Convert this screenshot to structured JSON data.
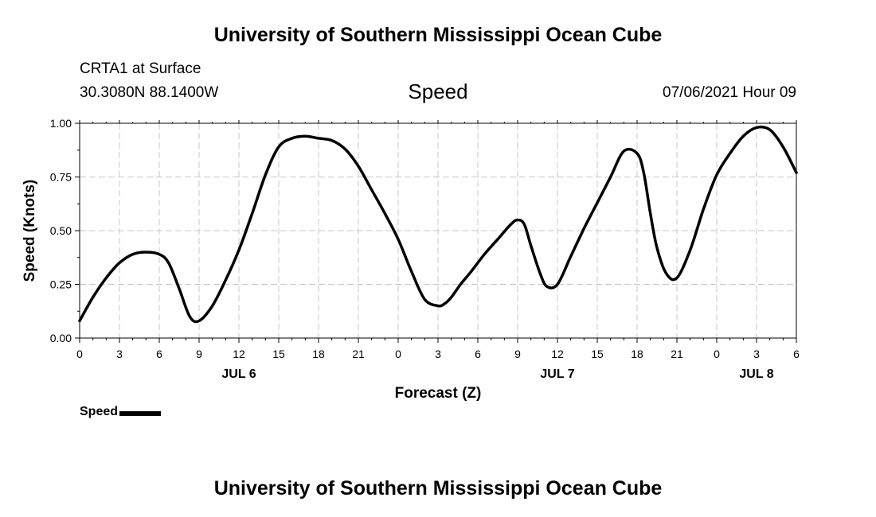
{
  "header": {
    "title": "University of Southern Mississippi Ocean Cube",
    "station": "CRTA1 at Surface",
    "coords": "30.3080N  88.1400W",
    "run_time": "07/06/2021 Hour 09"
  },
  "footer": {
    "title": "University of Southern Mississippi Ocean Cube"
  },
  "legend": {
    "label": "Speed"
  },
  "chart_data": {
    "type": "line",
    "title": "Speed",
    "xlabel": "Forecast (Z)",
    "ylabel": "Speed (Knots)",
    "x_unit": "forecast hour",
    "xlim": [
      0,
      54
    ],
    "ylim": [
      0,
      1
    ],
    "y_ticks": [
      "0.00",
      "0.25",
      "0.50",
      "0.75",
      "1.00"
    ],
    "x_tick_labels": [
      "0",
      "3",
      "6",
      "9",
      "12",
      "15",
      "18",
      "21",
      "0",
      "3",
      "6",
      "9",
      "12",
      "15",
      "18",
      "21",
      "0",
      "3",
      "6"
    ],
    "date_labels": [
      {
        "label": "JUL 6",
        "hour": 12
      },
      {
        "label": "JUL 7",
        "hour": 36
      },
      {
        "label": "JUL 8",
        "hour": 51
      }
    ],
    "grid": true,
    "legend_position": "bottom-left",
    "series": [
      {
        "name": "Speed",
        "color": "#000000",
        "x": [
          0,
          1,
          2,
          3,
          4,
          5,
          6,
          6.7,
          7.5,
          8.3,
          9,
          10,
          11,
          12,
          13,
          14,
          15,
          16,
          17,
          18,
          19,
          20,
          21,
          22,
          23,
          24,
          25,
          26,
          27,
          27.5,
          28,
          28.7,
          29.5,
          30.5,
          31.5,
          32.5,
          33,
          33.5,
          34,
          34.7,
          35.2,
          36,
          37,
          38,
          39,
          40,
          41,
          42,
          42.5,
          43,
          43.5,
          44.2,
          45,
          46,
          47,
          48,
          49,
          50,
          51,
          52,
          53,
          54
        ],
        "y": [
          0.08,
          0.19,
          0.28,
          0.35,
          0.39,
          0.4,
          0.39,
          0.35,
          0.23,
          0.1,
          0.08,
          0.15,
          0.27,
          0.41,
          0.58,
          0.76,
          0.89,
          0.93,
          0.94,
          0.93,
          0.92,
          0.88,
          0.8,
          0.69,
          0.58,
          0.46,
          0.31,
          0.18,
          0.15,
          0.16,
          0.19,
          0.25,
          0.31,
          0.39,
          0.46,
          0.53,
          0.55,
          0.53,
          0.43,
          0.3,
          0.24,
          0.25,
          0.38,
          0.51,
          0.63,
          0.75,
          0.87,
          0.86,
          0.77,
          0.58,
          0.42,
          0.3,
          0.28,
          0.41,
          0.6,
          0.76,
          0.86,
          0.94,
          0.98,
          0.97,
          0.89,
          0.77
        ]
      }
    ]
  }
}
